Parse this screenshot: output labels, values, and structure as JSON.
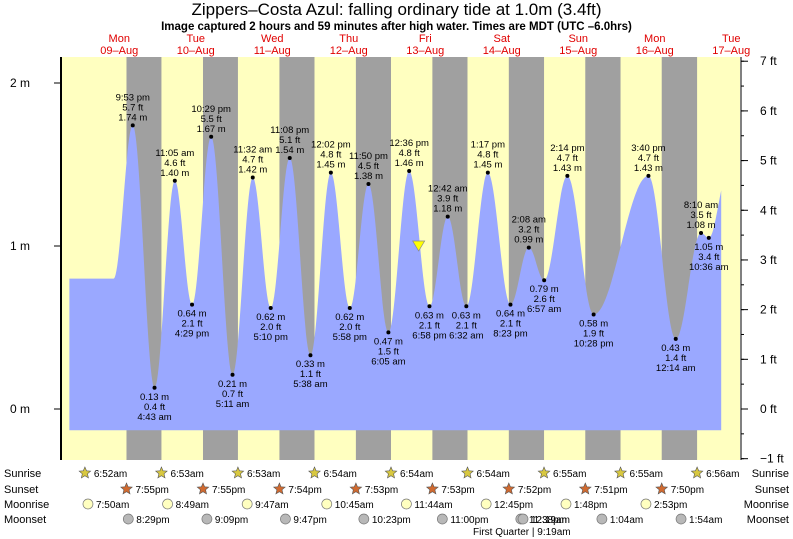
{
  "header": {
    "title": "Zippers–Costa Azul: falling  ordinary tide at 1.0m (3.4ft)",
    "subtitle": "Image captured 2 hours and 59 minutes after high water. Times are MDT (UTC –6.0hrs)"
  },
  "chart_data": {
    "type": "area",
    "xlabel": "",
    "ylabel": "",
    "ylim_m": [
      -0.3,
      2.1
    ],
    "y_ticks_m": [
      {
        "v": 0,
        "label": "0 m"
      },
      {
        "v": 1,
        "label": "1 m"
      },
      {
        "v": 2,
        "label": "2 m"
      }
    ],
    "y_ticks_ft": [
      {
        "v": -1,
        "label": "−1 ft"
      },
      {
        "v": 0,
        "label": "0 ft"
      },
      {
        "v": 1,
        "label": "1 ft"
      },
      {
        "v": 2,
        "label": "2 ft"
      },
      {
        "v": 3,
        "label": "3 ft"
      },
      {
        "v": 4,
        "label": "4 ft"
      },
      {
        "v": 5,
        "label": "5 ft"
      },
      {
        "v": 6,
        "label": "6 ft"
      },
      {
        "v": 7,
        "label": "7 ft"
      }
    ],
    "colors": {
      "tide": "#9aa8ff",
      "day": "#ffffc0",
      "night": "#a0a0a0",
      "day_label": "#e00000",
      "marker": "#ffff00"
    },
    "days": [
      {
        "weekday": "Mon",
        "date": "09–Aug"
      },
      {
        "weekday": "Tue",
        "date": "10–Aug"
      },
      {
        "weekday": "Wed",
        "date": "11–Aug"
      },
      {
        "weekday": "Thu",
        "date": "12–Aug"
      },
      {
        "weekday": "Fri",
        "date": "13–Aug"
      },
      {
        "weekday": "Sat",
        "date": "14–Aug"
      },
      {
        "weekday": "Sun",
        "date": "15–Aug"
      },
      {
        "weekday": "Mon",
        "date": "16–Aug"
      },
      {
        "weekday": "Tue",
        "date": "17–Aug"
      }
    ],
    "series": [
      {
        "events": [
          {
            "time": "9:53 pm",
            "m": 1.74,
            "ft": 5.7,
            "m_label": "1.74 m",
            "ft_label": "5.7 ft",
            "kind": "high"
          },
          {
            "time": "4:43 am",
            "m": 0.13,
            "ft": 0.4,
            "m_label": "0.13 m",
            "ft_label": "0.4 ft",
            "kind": "low"
          },
          {
            "time": "11:05 am",
            "m": 1.4,
            "ft": 4.6,
            "m_label": "1.40 m",
            "ft_label": "4.6 ft",
            "kind": "high"
          },
          {
            "time": "4:29 pm",
            "m": 0.64,
            "ft": 2.1,
            "m_label": "0.64 m",
            "ft_label": "2.1 ft",
            "kind": "low"
          },
          {
            "time": "10:29 pm",
            "m": 1.67,
            "ft": 5.5,
            "m_label": "1.67 m",
            "ft_label": "5.5 ft",
            "kind": "high"
          },
          {
            "time": "5:11 am",
            "m": 0.21,
            "ft": 0.7,
            "m_label": "0.21 m",
            "ft_label": "0.7 ft",
            "kind": "low"
          },
          {
            "time": "11:32 am",
            "m": 1.42,
            "ft": 4.7,
            "m_label": "1.42 m",
            "ft_label": "4.7 ft",
            "kind": "high"
          },
          {
            "time": "5:10 pm",
            "m": 0.62,
            "ft": 2.0,
            "m_label": "0.62 m",
            "ft_label": "2.0 ft",
            "kind": "low"
          },
          {
            "time": "11:08 pm",
            "m": 1.54,
            "ft": 5.1,
            "m_label": "1.54 m",
            "ft_label": "5.1 ft",
            "kind": "high"
          },
          {
            "time": "5:38 am",
            "m": 0.33,
            "ft": 1.1,
            "m_label": "0.33 m",
            "ft_label": "1.1 ft",
            "kind": "low"
          },
          {
            "time": "12:02 pm",
            "m": 1.45,
            "ft": 4.8,
            "m_label": "1.45 m",
            "ft_label": "4.8 ft",
            "kind": "high"
          },
          {
            "time": "5:58 pm",
            "m": 0.62,
            "ft": 2.0,
            "m_label": "0.62 m",
            "ft_label": "2.0 ft",
            "kind": "low"
          },
          {
            "time": "11:50 pm",
            "m": 1.38,
            "ft": 4.5,
            "m_label": "1.38 m",
            "ft_label": "4.5 ft",
            "kind": "high"
          },
          {
            "time": "6:05 am",
            "m": 0.47,
            "ft": 1.5,
            "m_label": "0.47 m",
            "ft_label": "1.5 ft",
            "kind": "low"
          },
          {
            "time": "12:36 pm",
            "m": 1.46,
            "ft": 4.8,
            "m_label": "1.46 m",
            "ft_label": "4.8 ft",
            "kind": "high"
          },
          {
            "time": "6:58 pm",
            "m": 0.63,
            "ft": 2.1,
            "m_label": "0.63 m",
            "ft_label": "2.1 ft",
            "kind": "low"
          },
          {
            "time": "12:42 am",
            "m": 1.18,
            "ft": 3.9,
            "m_label": "1.18 m",
            "ft_label": "3.9 ft",
            "kind": "high"
          },
          {
            "time": "6:32 am",
            "m": 0.63,
            "ft": 2.1,
            "m_label": "0.63 m",
            "ft_label": "2.1 ft",
            "kind": "low"
          },
          {
            "time": "1:17 pm",
            "m": 1.45,
            "ft": 4.8,
            "m_label": "1.45 m",
            "ft_label": "4.8 ft",
            "kind": "high"
          },
          {
            "time": "8:23 pm",
            "m": 0.64,
            "ft": 2.1,
            "m_label": "0.64 m",
            "ft_label": "2.1 ft",
            "kind": "low"
          },
          {
            "time": "2:08 am",
            "m": 0.99,
            "ft": 3.2,
            "m_label": "0.99 m",
            "ft_label": "3.2 ft",
            "kind": "high"
          },
          {
            "time": "6:57 am",
            "m": 0.79,
            "ft": 2.6,
            "m_label": "0.79 m",
            "ft_label": "2.6 ft",
            "kind": "low"
          },
          {
            "time": "2:14 pm",
            "m": 1.43,
            "ft": 4.7,
            "m_label": "1.43 m",
            "ft_label": "4.7 ft",
            "kind": "high"
          },
          {
            "time": "10:28 pm",
            "m": 0.58,
            "ft": 1.9,
            "m_label": "0.58 m",
            "ft_label": "1.9 ft",
            "kind": "low"
          },
          {
            "time": "3:40 pm",
            "m": 1.43,
            "ft": 4.7,
            "m_label": "1.43 m",
            "ft_label": "4.7 ft",
            "kind": "high"
          },
          {
            "time": "12:14 am",
            "m": 0.43,
            "ft": 1.4,
            "m_label": "0.43 m",
            "ft_label": "1.4 ft",
            "kind": "low"
          },
          {
            "time": "8:10 am",
            "m": 1.08,
            "ft": 3.5,
            "m_label": "1.08 m",
            "ft_label": "3.5 ft",
            "kind": "high"
          },
          {
            "time": "10:36 am",
            "m": 1.05,
            "ft": 3.4,
            "m_label": "1.05 m",
            "ft_label": "3.4 ft",
            "kind": "low"
          }
        ]
      }
    ],
    "current_level_m": 1.0
  },
  "rows": {
    "labels": {
      "sunrise": "Sunrise",
      "sunset": "Sunset",
      "moonrise": "Moonrise",
      "moonset": "Moonset"
    },
    "sunrise": [
      "6:52am",
      "6:53am",
      "6:53am",
      "6:54am",
      "6:54am",
      "6:54am",
      "6:55am",
      "6:55am",
      "6:56am"
    ],
    "sunset": [
      "7:55pm",
      "7:55pm",
      "7:54pm",
      "7:53pm",
      "7:53pm",
      "7:52pm",
      "7:51pm",
      "7:50pm"
    ],
    "moonrise": [
      "7:50am",
      "8:49am",
      "9:47am",
      "10:45am",
      "11:44am",
      "12:45pm",
      "1:48pm",
      "2:53pm"
    ],
    "moonset": [
      "8:29pm",
      "9:09pm",
      "9:47pm",
      "10:23pm",
      "11:00pm",
      "11:38pm",
      "12:19am",
      "1:04am",
      "1:54am"
    ],
    "moon_phase": "First Quarter | 9:19am"
  }
}
